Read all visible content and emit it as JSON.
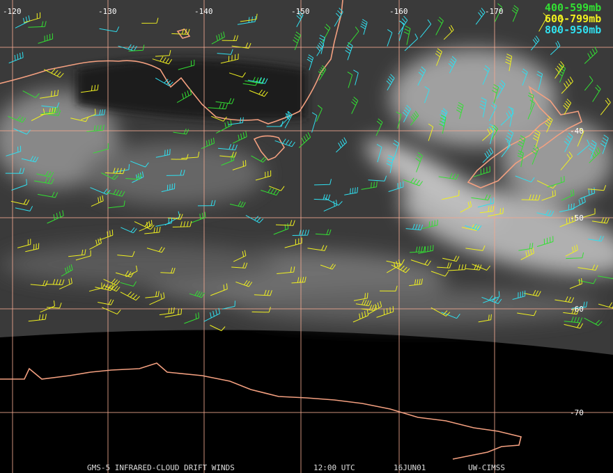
{
  "map": {
    "longitude_labels": [
      "-120",
      "-130",
      "-140",
      "-150",
      "-160",
      "-170"
    ],
    "latitude_labels": [
      "-40",
      "-50",
      "-60",
      "-70"
    ],
    "legend": [
      {
        "label": "400-599mb",
        "color": "#33e033"
      },
      {
        "label": "600-799mb",
        "color": "#f0f020"
      },
      {
        "label": "800-950mb",
        "color": "#30e0f0"
      }
    ],
    "footer": {
      "product": "GMS-5 INFRARED-CLOUD DRIFT WINDS",
      "time": "12:00 UTC",
      "date": "16JUN01",
      "source": "UW-CIMSS"
    }
  }
}
